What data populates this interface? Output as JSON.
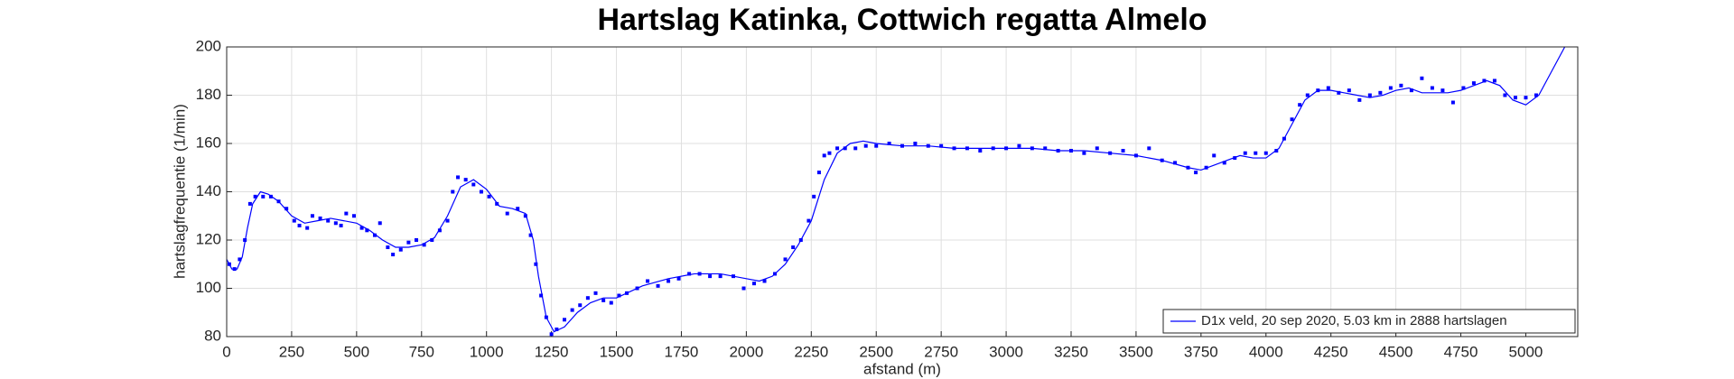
{
  "chart_data": {
    "type": "line",
    "title": "Hartslag Katinka, Cottwich regatta Almelo",
    "xlabel": "afstand (m)",
    "ylabel": "hartslagfrequentie (1/min)",
    "xlim": [
      0,
      5200
    ],
    "ylim": [
      80,
      200
    ],
    "xticks": [
      0,
      250,
      500,
      750,
      1000,
      1250,
      1500,
      1750,
      2000,
      2250,
      2500,
      2750,
      3000,
      3250,
      3500,
      3750,
      4000,
      4250,
      4500,
      4750,
      5000
    ],
    "yticks": [
      80,
      100,
      120,
      140,
      160,
      180,
      200
    ],
    "grid": true,
    "legend": "lower right",
    "series": [
      {
        "name": "D1x veld, 20 sep 2020, 5.03 km in 2888 hartslagen",
        "color": "#0000ff",
        "mode": "line",
        "x": [
          0,
          20,
          40,
          60,
          80,
          100,
          130,
          160,
          200,
          250,
          300,
          350,
          400,
          450,
          500,
          550,
          600,
          650,
          700,
          750,
          800,
          850,
          900,
          950,
          1000,
          1050,
          1100,
          1150,
          1180,
          1200,
          1230,
          1260,
          1300,
          1350,
          1400,
          1450,
          1500,
          1600,
          1700,
          1800,
          1900,
          2000,
          2050,
          2100,
          2150,
          2200,
          2250,
          2300,
          2350,
          2400,
          2450,
          2500,
          2600,
          2700,
          2800,
          2900,
          3000,
          3100,
          3200,
          3300,
          3400,
          3500,
          3600,
          3700,
          3750,
          3800,
          3850,
          3900,
          3950,
          4000,
          4050,
          4100,
          4150,
          4200,
          4250,
          4300,
          4350,
          4400,
          4450,
          4500,
          4550,
          4600,
          4700,
          4750,
          4800,
          4850,
          4900,
          4950,
          5000,
          5050,
          5100,
          5150
        ],
        "values": [
          112,
          108,
          108,
          113,
          125,
          135,
          140,
          139,
          136,
          130,
          127,
          128,
          129,
          128,
          127,
          124,
          120,
          117,
          117,
          118,
          121,
          130,
          142,
          145,
          141,
          134,
          133,
          131,
          120,
          105,
          88,
          82,
          84,
          90,
          94,
          96,
          96,
          101,
          104,
          106,
          106,
          104,
          103,
          105,
          110,
          118,
          128,
          145,
          156,
          160,
          161,
          160,
          159,
          159,
          158,
          158,
          158,
          158,
          157,
          157,
          156,
          155,
          153,
          150,
          149,
          151,
          153,
          155,
          154,
          154,
          158,
          168,
          178,
          182,
          182,
          181,
          180,
          179,
          180,
          182,
          183,
          181,
          181,
          182,
          184,
          186,
          184,
          178,
          176,
          180,
          190,
          200
        ]
      },
      {
        "color": "#0000ff",
        "mode": "markers",
        "x": [
          10,
          30,
          50,
          70,
          90,
          110,
          140,
          170,
          200,
          230,
          260,
          280,
          310,
          330,
          360,
          390,
          420,
          440,
          460,
          490,
          520,
          540,
          570,
          590,
          620,
          640,
          670,
          700,
          730,
          760,
          790,
          820,
          850,
          870,
          890,
          920,
          950,
          980,
          1010,
          1040,
          1080,
          1120,
          1150,
          1170,
          1190,
          1210,
          1230,
          1250,
          1270,
          1300,
          1330,
          1360,
          1390,
          1420,
          1450,
          1480,
          1510,
          1540,
          1580,
          1620,
          1660,
          1700,
          1740,
          1780,
          1820,
          1860,
          1900,
          1950,
          1990,
          2030,
          2070,
          2110,
          2150,
          2180,
          2210,
          2240,
          2260,
          2280,
          2300,
          2320,
          2350,
          2380,
          2420,
          2460,
          2500,
          2550,
          2600,
          2650,
          2700,
          2750,
          2800,
          2850,
          2900,
          2950,
          3000,
          3050,
          3100,
          3150,
          3200,
          3250,
          3300,
          3350,
          3400,
          3450,
          3500,
          3550,
          3600,
          3650,
          3700,
          3730,
          3770,
          3800,
          3840,
          3880,
          3920,
          3960,
          4000,
          4040,
          4070,
          4100,
          4130,
          4160,
          4200,
          4240,
          4280,
          4320,
          4360,
          4400,
          4440,
          4480,
          4520,
          4560,
          4600,
          4640,
          4680,
          4720,
          4760,
          4800,
          4840,
          4880,
          4920,
          4960,
          5000,
          5040
        ],
        "values": [
          110,
          108,
          112,
          120,
          135,
          138,
          138,
          138,
          136,
          133,
          128,
          126,
          125,
          130,
          129,
          128,
          127,
          126,
          131,
          130,
          125,
          124,
          122,
          127,
          117,
          114,
          116,
          119,
          120,
          118,
          120,
          124,
          128,
          140,
          146,
          145,
          143,
          140,
          138,
          135,
          131,
          133,
          130,
          122,
          110,
          97,
          88,
          81,
          83,
          87,
          91,
          93,
          96,
          98,
          95,
          94,
          97,
          98,
          100,
          103,
          101,
          103,
          104,
          106,
          106,
          105,
          105,
          105,
          100,
          102,
          103,
          106,
          112,
          117,
          120,
          128,
          138,
          148,
          155,
          156,
          158,
          158,
          158,
          159,
          159,
          160,
          159,
          160,
          159,
          159,
          158,
          158,
          157,
          158,
          158,
          159,
          158,
          158,
          157,
          157,
          156,
          158,
          156,
          157,
          155,
          158,
          153,
          152,
          150,
          148,
          150,
          155,
          152,
          154,
          156,
          156,
          156,
          157,
          162,
          170,
          176,
          180,
          182,
          183,
          181,
          182,
          178,
          180,
          181,
          183,
          184,
          182,
          187,
          183,
          182,
          177,
          183,
          185,
          186,
          186,
          180,
          179,
          179,
          180
        ]
      }
    ]
  }
}
